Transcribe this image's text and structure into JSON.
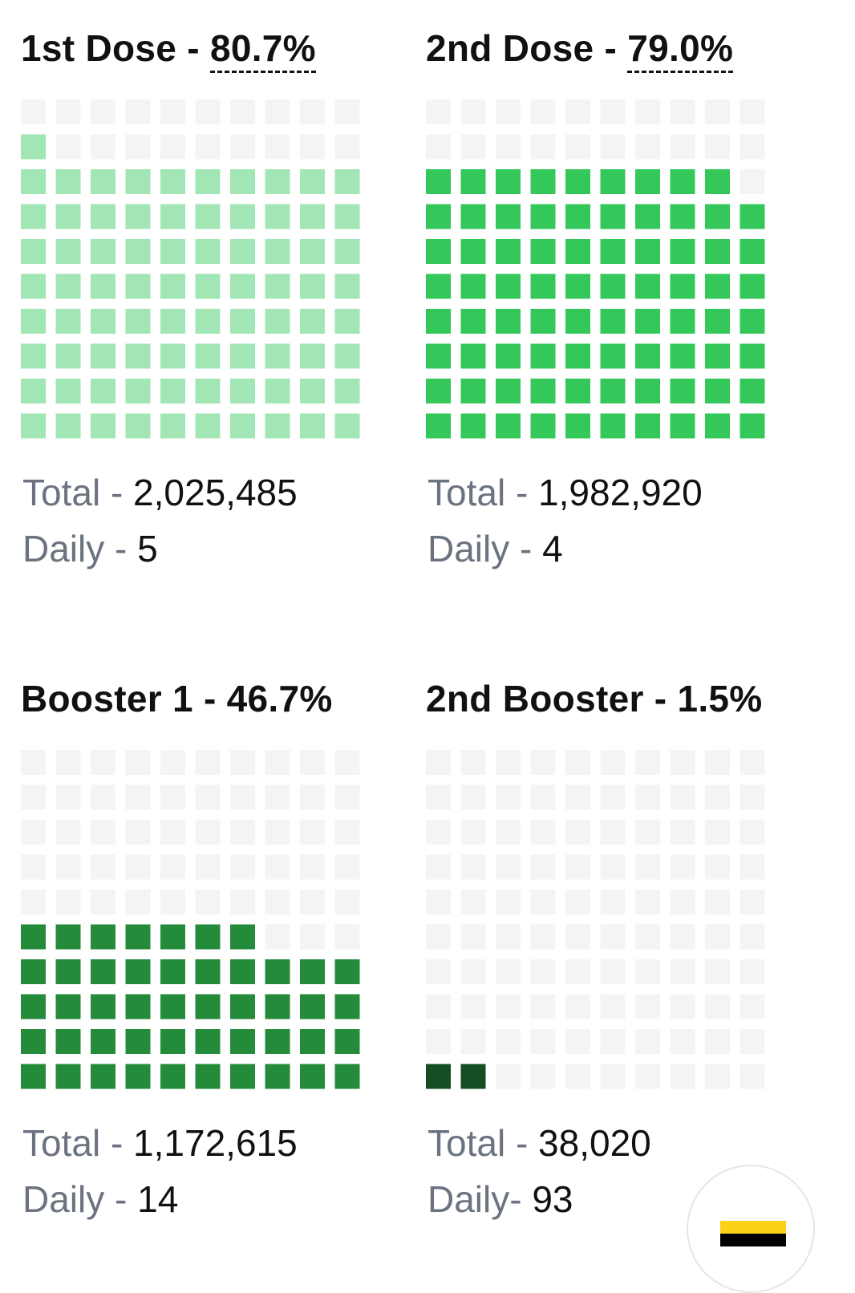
{
  "chart_data": [
    {
      "type": "waffle",
      "title": {
        "label": "1st Dose - ",
        "percent": "80.7%"
      },
      "percent_value": 80.7,
      "filled_squares": 81,
      "grid": [
        10,
        10
      ],
      "color": "#a1e6b4",
      "empty_color": "#f3f4f6",
      "total_label": "Total - ",
      "total": "2,025,485",
      "daily_label": "Daily - ",
      "daily": "5"
    },
    {
      "type": "waffle",
      "title": {
        "label": "2nd Dose - ",
        "percent": "79.0%"
      },
      "percent_value": 79.0,
      "filled_squares": 79,
      "grid": [
        10,
        10
      ],
      "color": "#34c759",
      "empty_color": "#f3f4f6",
      "total_label": "Total - ",
      "total": "1,982,920",
      "daily_label": "Daily - ",
      "daily": "4"
    },
    {
      "type": "waffle",
      "title": {
        "label": "Booster 1 - ",
        "percent": "46.7%"
      },
      "percent_value": 46.7,
      "filled_squares": 47,
      "grid": [
        10,
        10
      ],
      "color": "#238b3a",
      "empty_color": "#f3f4f6",
      "total_label": "Total - ",
      "total": "1,172,615",
      "daily_label": "Daily - ",
      "daily": "14"
    },
    {
      "type": "waffle",
      "title": {
        "label": "2nd Booster - ",
        "percent": "1.5%"
      },
      "percent_value": 1.5,
      "filled_squares": 2,
      "grid": [
        10,
        10
      ],
      "color": "#154d23",
      "empty_color": "#f3f4f6",
      "total_label": "Total - ",
      "total": "38,020",
      "daily_label": "Daily- ",
      "daily": "93"
    }
  ],
  "badge": {
    "icon": "flag-icon",
    "colors": [
      "#fcd116",
      "#000000"
    ]
  }
}
